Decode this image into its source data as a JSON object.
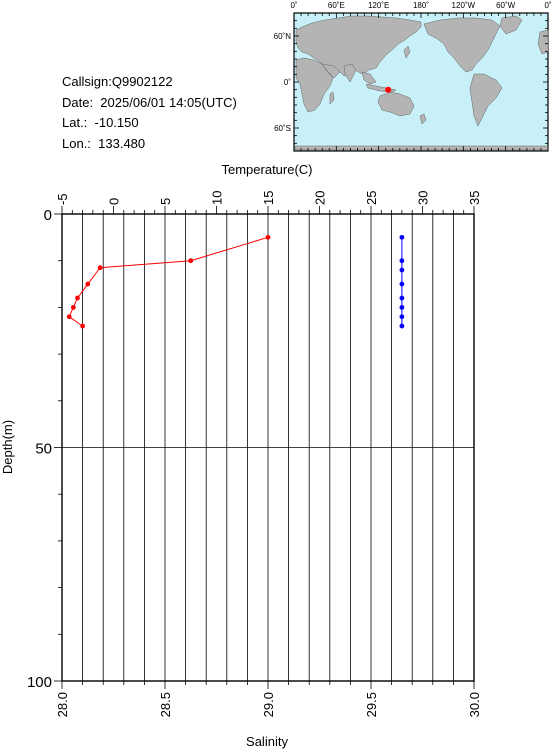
{
  "station": {
    "callsign": "Callsign:Q9902122",
    "date": "Date:  2025/06/01 14:05(UTC)",
    "lat": "Lat.:  -10.150",
    "lon": "Lon.:  133.480"
  },
  "map": {
    "top_ticks": [
      "0˚",
      "60˚E",
      "120˚E",
      "180˚",
      "120˚W",
      "60˚W",
      "0˚"
    ],
    "lat_ticks": [
      "60˚N",
      "0˚",
      "60˚S"
    ],
    "marker_lon": 133.48,
    "marker_lat": -10.15,
    "colors": {
      "ocean": "#c8f0f8",
      "land": "#b4b4b4",
      "marker": "#ff0000"
    }
  },
  "chart_data": {
    "type": "line",
    "title": "",
    "top_axis_label": "Temperature(C)",
    "bottom_axis_label": "Salinity",
    "y_axis_label": "Depth(m)",
    "temperature_axis": {
      "min": -5,
      "max": 35,
      "ticks": [
        "-5",
        "0",
        "5",
        "10",
        "15",
        "20",
        "25",
        "30",
        "35"
      ]
    },
    "salinity_axis": {
      "min": 28.0,
      "max": 30.0,
      "ticks": [
        "28.0",
        "28.5",
        "29.0",
        "29.5",
        "30.0"
      ]
    },
    "depth_axis": {
      "min": 0,
      "max": 100,
      "inverted": true,
      "ticks": [
        "0",
        "50",
        "100"
      ]
    },
    "grid": true,
    "series": [
      {
        "quantity": "temperature",
        "color": "#ff0000",
        "points": [
          {
            "depth": 5,
            "value": 15.0
          },
          {
            "depth": 10,
            "value": 7.5
          },
          {
            "depth": 11.5,
            "value": -1.3
          },
          {
            "depth": 15,
            "value": -2.5
          },
          {
            "depth": 18,
            "value": -3.5
          },
          {
            "depth": 20,
            "value": -3.9
          },
          {
            "depth": 22,
            "value": -4.3
          },
          {
            "depth": 24,
            "value": -3.0
          }
        ]
      },
      {
        "quantity": "salinity",
        "color": "#0000ff",
        "points": [
          {
            "depth": 5,
            "value": 29.65
          },
          {
            "depth": 10,
            "value": 29.65
          },
          {
            "depth": 12,
            "value": 29.65
          },
          {
            "depth": 15,
            "value": 29.65
          },
          {
            "depth": 18,
            "value": 29.65
          },
          {
            "depth": 20,
            "value": 29.65
          },
          {
            "depth": 22,
            "value": 29.65
          },
          {
            "depth": 24,
            "value": 29.65
          }
        ]
      }
    ]
  }
}
